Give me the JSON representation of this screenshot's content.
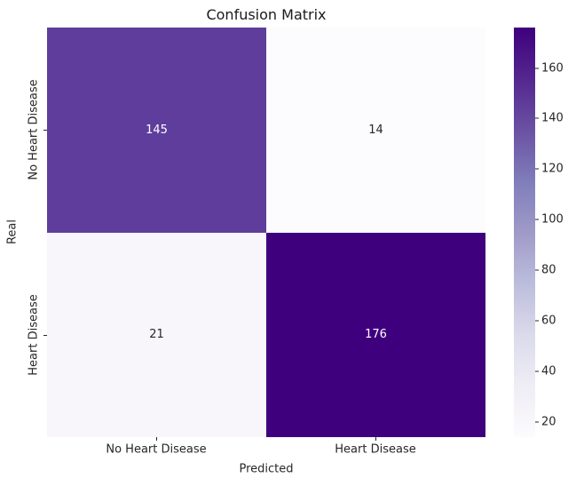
{
  "chart_data": {
    "type": "heatmap",
    "title": "Confusion Matrix",
    "xlabel": "Predicted",
    "ylabel": "Real",
    "x_categories": [
      "No Heart Disease",
      "Heart Disease"
    ],
    "y_categories": [
      "No Heart Disease",
      "Heart Disease"
    ],
    "values": [
      [
        145,
        14
      ],
      [
        21,
        176
      ]
    ],
    "vmin": 14,
    "vmax": 176,
    "colormap": "Purples",
    "grid": false,
    "legend_position": "right-colorbar",
    "colorbar_ticks": [
      160,
      140,
      120,
      100,
      80,
      60,
      40,
      20
    ],
    "colorbar_stops_top_to_bottom": [
      "#3f007d",
      "#54278f",
      "#6a51a3",
      "#807dba",
      "#9e9ac8",
      "#bcbddc",
      "#dadaeb",
      "#efedf5",
      "#fcfbfd"
    ],
    "cell_colors": [
      [
        "#5e3d9c",
        "#fcfbfd"
      ],
      [
        "#f8f6fa",
        "#3f007d"
      ]
    ],
    "annotation_colors": [
      [
        "#ffffff",
        "#262626"
      ],
      [
        "#262626",
        "#ffffff"
      ]
    ]
  }
}
